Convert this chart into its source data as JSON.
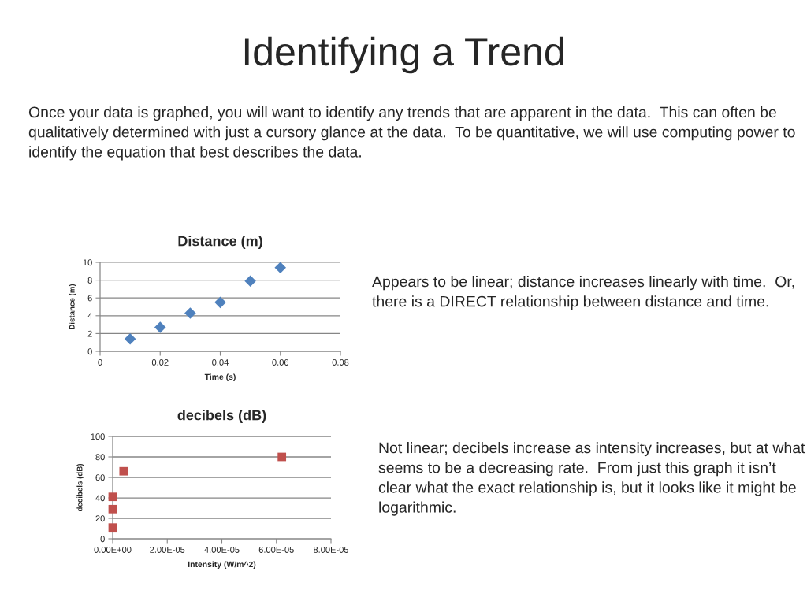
{
  "chart_data": [
    {
      "type": "scatter",
      "title": "Distance (m)",
      "xlabel": "Time (s)",
      "ylabel": "Distance (m)",
      "x": [
        0.01,
        0.02,
        0.03,
        0.04,
        0.05,
        0.06
      ],
      "values": [
        1.4,
        2.7,
        4.3,
        5.5,
        7.9,
        9.4
      ],
      "color": "#4f81bd",
      "marker": "diamond",
      "xlim": [
        0,
        0.08
      ],
      "xticks": [
        0,
        0.02,
        0.04,
        0.06,
        0.08
      ],
      "ylim": [
        0,
        10
      ],
      "yticks": [
        0,
        2,
        4,
        6,
        8,
        10
      ],
      "grid": "y",
      "annotations": [
        "Identifying a Trend",
        "Once your data is graphed, you will want to identify any trends that are apparent in the data.  This can often be qualitatively determined with just a cursory glance at the data.  To be quantitative, we will use computing power to identify the equation that best describes the data.",
        "Appears to be linear; distance increases linearly with time.  Or, there is a DIRECT relationship between distance and time."
      ]
    },
    {
      "type": "scatter",
      "title": "decibels (dB)",
      "xlabel": "Intensity (W/m^2)",
      "ylabel": "decibels (dB)",
      "x": [
        0,
        0,
        0,
        4e-06,
        6.2e-05
      ],
      "values": [
        11,
        29,
        41,
        66,
        80
      ],
      "color": "#c0504d",
      "marker": "square",
      "xlim": [
        0,
        8e-05
      ],
      "xticks": [
        {
          "value": 0,
          "label": "0.00E+00"
        },
        {
          "value": 2e-05,
          "label": "2.00E-05"
        },
        {
          "value": 4e-05,
          "label": "4.00E-05"
        },
        {
          "value": 6e-05,
          "label": "6.00E-05"
        },
        {
          "value": 8e-05,
          "label": "8.00E-05"
        }
      ],
      "ylim": [
        0,
        100
      ],
      "yticks": [
        0,
        20,
        40,
        60,
        80,
        100
      ],
      "grid": "y",
      "annotations": [
        "Not linear; decibels increase as intensity increases, but at what seems to be a decreasing rate.  From just this graph it isn’t clear what the exact relationship is, but it looks like it might be logarithmic."
      ]
    }
  ]
}
